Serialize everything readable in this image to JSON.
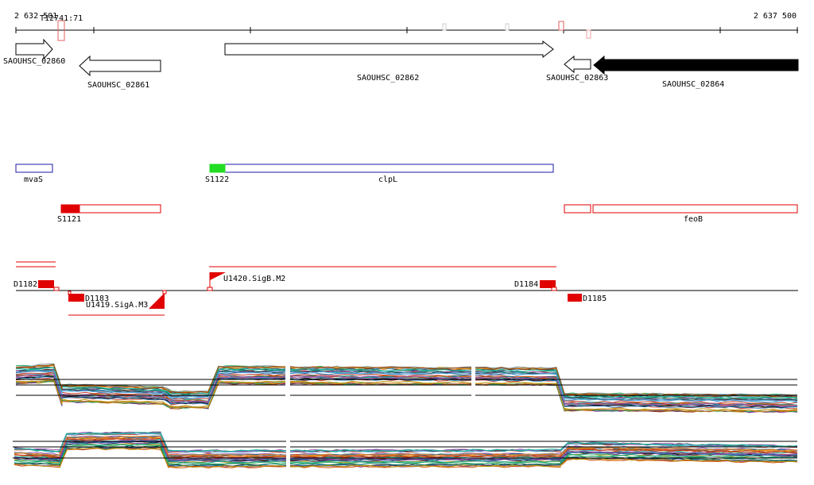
{
  "ruler": {
    "start_label": "2 632 501",
    "end_label": "2 637 500",
    "marker_label": "T12741:71"
  },
  "genes": [
    {
      "id": "SAOUHSC_02860",
      "strand": "+"
    },
    {
      "id": "SAOUHSC_02861",
      "strand": "-"
    },
    {
      "id": "SAOUHSC_02862",
      "strand": "+"
    },
    {
      "id": "SAOUHSC_02863",
      "strand": "-"
    },
    {
      "id": "SAOUHSC_02864",
      "strand": "-",
      "highlighted": true
    }
  ],
  "annotations_blue": [
    {
      "label": "mvaS"
    },
    {
      "label": "S1122"
    },
    {
      "label": "clpL"
    }
  ],
  "annotations_red": [
    {
      "label": "S1121"
    },
    {
      "label": "feoB"
    }
  ],
  "regulatory": [
    {
      "label": "D1182"
    },
    {
      "label": "D1183"
    },
    {
      "label": "U1419.SigA.M3"
    },
    {
      "label": "U1420.SigB.M2"
    },
    {
      "label": "D1184"
    },
    {
      "label": "D1185"
    }
  ],
  "colors": {
    "gene_outline": "#000000",
    "gene_fill_highlight": "#000000",
    "blue_annotation": "#1a1aa8",
    "red_annotation": "#e00000",
    "green_start": "#22dd22",
    "axis": "#000000"
  },
  "expression_panels": [
    {
      "name": "forward-strand-expression"
    },
    {
      "name": "reverse-strand-expression"
    }
  ]
}
